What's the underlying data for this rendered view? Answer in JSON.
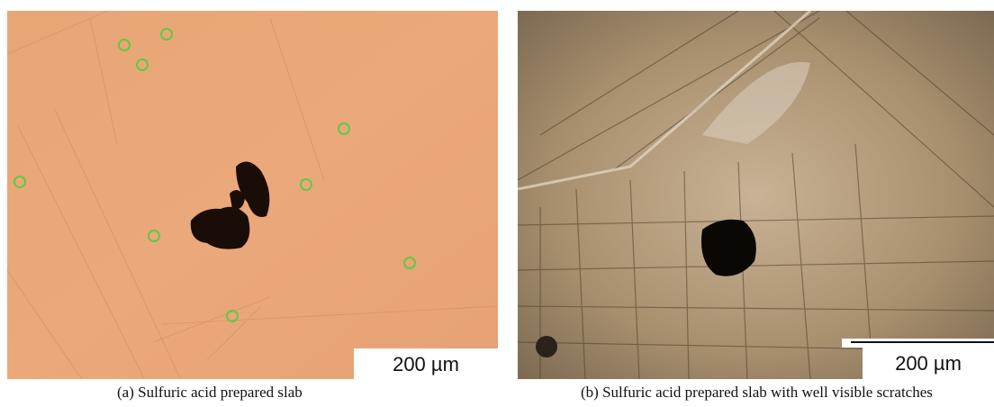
{
  "panels": [
    {
      "scale_bar": "200 µm",
      "caption": "(a) Sulfuric acid prepared slab"
    },
    {
      "scale_bar": "200 µm",
      "caption": "(b) Sulfuric acid prepared slab with well visible scratches"
    }
  ]
}
